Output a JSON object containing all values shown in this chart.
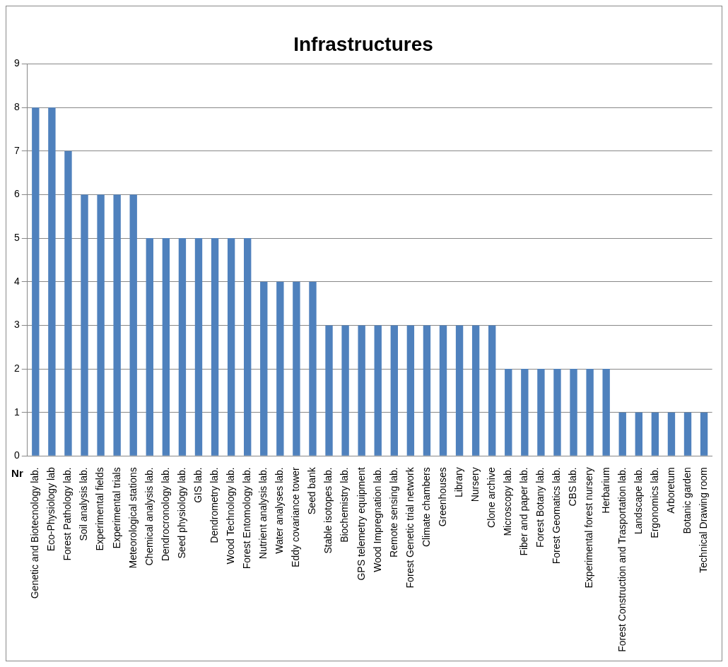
{
  "chart_data": {
    "type": "bar",
    "title": "Infrastructures",
    "xlabel": "Nr",
    "categories": [
      "Genetic and Biotecnology lab.",
      "Eco-Physiology lab",
      "Forest Pathology lab.",
      "Soil analysis lab.",
      "Experimental fields",
      "Experimental trials",
      "Meteorological stations",
      "Chemical analysis lab.",
      "Dendrocronology lab.",
      "Seed physiology lab.",
      "GIS lab.",
      "Dendrometry lab.",
      "Wood Technology lab.",
      "Forest Entomology lab.",
      "Nutrient analysis lab.",
      "Water analyses lab.",
      "Eddy covariance tower",
      "Seed bank",
      "Stable isotopes lab.",
      "Biochemistry lab.",
      "GPS telemetry equipment",
      "Wood Impregnation lab.",
      "Remote sensing lab.",
      "Forest Genetic trial network",
      "Climate chambers",
      "Greenhouses",
      "Library",
      "Nursery",
      "Clone archive",
      "Microscopy lab.",
      "Fiber and paper lab.",
      "Forest Botany lab.",
      "Forest Geomatics lab.",
      "CBS lab.",
      "Experimental forest nursery",
      "Herbarium",
      "Forest Construction and Trasportation lab.",
      "Landscape lab.",
      "Ergonomics lab.",
      "Arboretum",
      "Botanic garden",
      "Technical Drawing room"
    ],
    "values": [
      8,
      8,
      7,
      6,
      6,
      6,
      6,
      5,
      5,
      5,
      5,
      5,
      5,
      5,
      4,
      4,
      4,
      4,
      3,
      3,
      3,
      3,
      3,
      3,
      3,
      3,
      3,
      3,
      3,
      2,
      2,
      2,
      2,
      2,
      2,
      2,
      1,
      1,
      1,
      1,
      1,
      1
    ],
    "color": "#4f81bd",
    "ylim": [
      0,
      9
    ],
    "yticks": [
      0,
      1,
      2,
      3,
      4,
      5,
      6,
      7,
      8,
      9
    ],
    "grid": "y",
    "legend": false
  }
}
